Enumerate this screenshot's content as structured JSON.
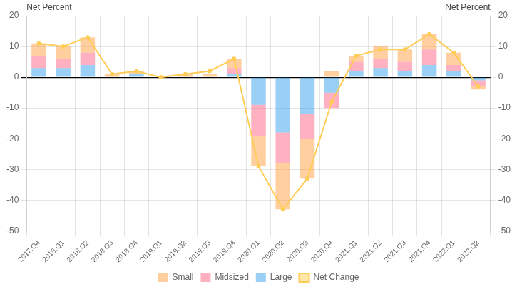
{
  "chart_data": {
    "type": "bar",
    "stacked": true,
    "grid": true,
    "legend": "bottom",
    "ylabel": "Net Percent",
    "y2label": "Net Percent",
    "categories": [
      "2017:Q4",
      "2018:Q1",
      "2018:Q2",
      "2018:Q3",
      "2018:Q4",
      "2019:Q1",
      "2019:Q2",
      "2019:Q3",
      "2019:Q4",
      "2020:Q1",
      "2020:Q2",
      "2020:Q3",
      "2020:Q4",
      "2021:Q1",
      "2021:Q2",
      "2021:Q3",
      "2021:Q4",
      "2022:Q1",
      "2022:Q2"
    ],
    "series": [
      {
        "name": "Small",
        "values": [
          4,
          4,
          5,
          1,
          1,
          0,
          1,
          1,
          3,
          -10,
          -15,
          -13,
          2,
          2,
          4,
          4,
          5,
          4,
          -1
        ]
      },
      {
        "name": "Midsized",
        "values": [
          4,
          3,
          4,
          0,
          0,
          0,
          0,
          0,
          2,
          -10,
          -10,
          -8,
          -5,
          3,
          3,
          3,
          5,
          2,
          -2
        ]
      },
      {
        "name": "Large",
        "values": [
          3,
          3,
          4,
          0,
          1,
          0,
          0,
          0,
          1,
          -9,
          -18,
          -12,
          -5,
          2,
          3,
          2,
          4,
          2,
          -1
        ]
      },
      {
        "name": "Net Change",
        "type": "line",
        "values": [
          11,
          10,
          13,
          1,
          2,
          0,
          1,
          2,
          6,
          -29,
          -43,
          -33,
          -8,
          7,
          9,
          9,
          14,
          8,
          -3
        ]
      }
    ],
    "ylim": [
      -50,
      20
    ],
    "yticks": [
      -50,
      -40,
      -30,
      -20,
      -10,
      0,
      10,
      20
    ],
    "y2lim": [
      -50,
      20
    ],
    "y2ticks": [
      -50,
      -40,
      -30,
      -20,
      -10,
      0,
      10,
      20
    ]
  }
}
